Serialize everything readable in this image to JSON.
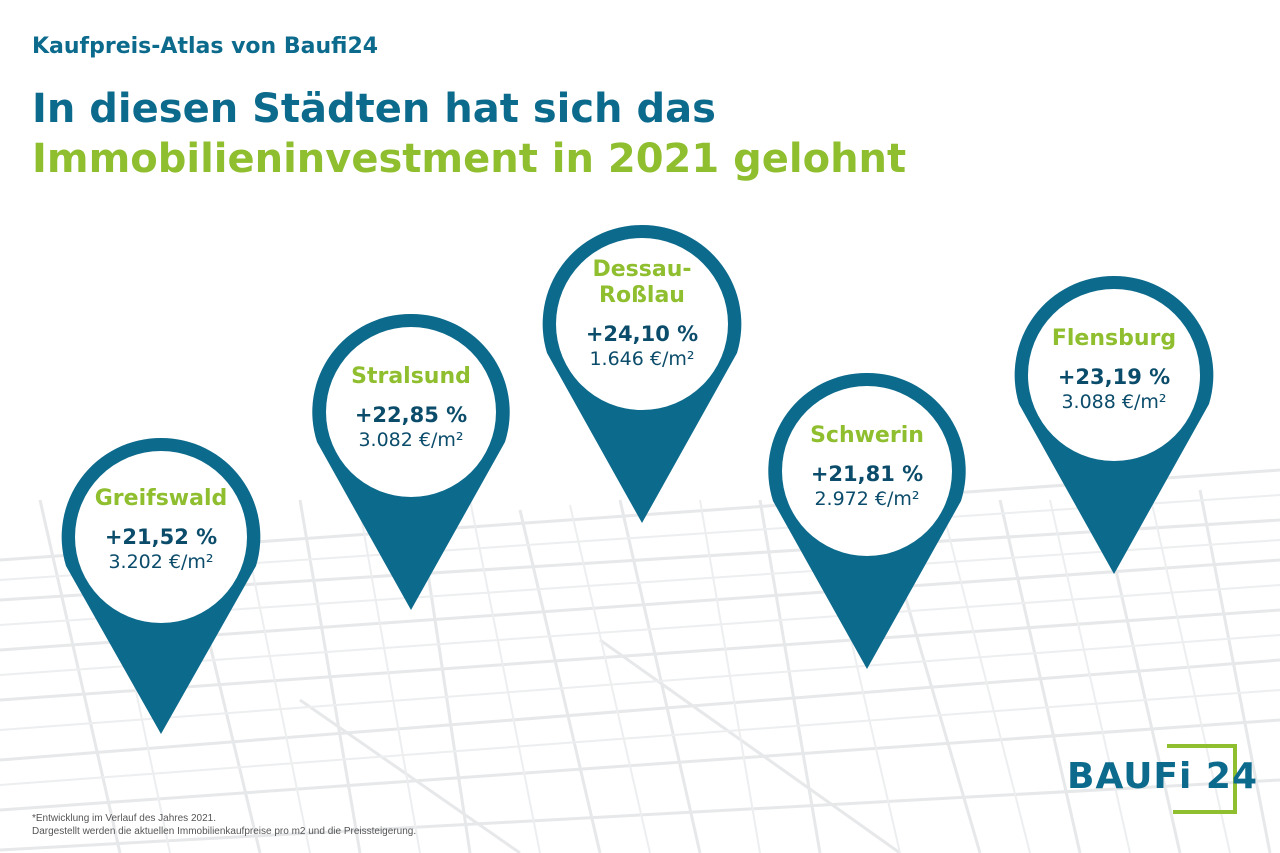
{
  "kicker": "Kaufpreis-Atlas von Baufi24",
  "headline": {
    "line1": "In diesen Städten hat sich das",
    "line2": "Immobilieninvestment in 2021 gelohnt"
  },
  "pins": [
    {
      "city": "Greifswald",
      "change": "+21,52 %",
      "price": "3.202 €/m²"
    },
    {
      "city": "Stralsund",
      "change": "+22,85 %",
      "price": "3.082 €/m²"
    },
    {
      "city_line1": "Dessau-",
      "city_line2": "Roßlau",
      "change": "+24,10 %",
      "price": "1.646 €/m²"
    },
    {
      "city": "Schwerin",
      "change": "+21,81 %",
      "price": "2.972 €/m²"
    },
    {
      "city": "Flensburg",
      "change": "+23,19 %",
      "price": "3.088 €/m²"
    }
  ],
  "footnote": {
    "line1": "*Entwicklung im Verlauf des Jahres 2021.",
    "line2": "Dargestellt werden die aktuellen Immobilienkaufpreise pro m2 und die Preissteigerung."
  },
  "logo": {
    "text": "BAUFi 24"
  },
  "colors": {
    "blue": "#0c6a8c",
    "green": "#8fbe2f",
    "dark": "#0b4c6b",
    "map_lines": "#e4e6e8"
  }
}
